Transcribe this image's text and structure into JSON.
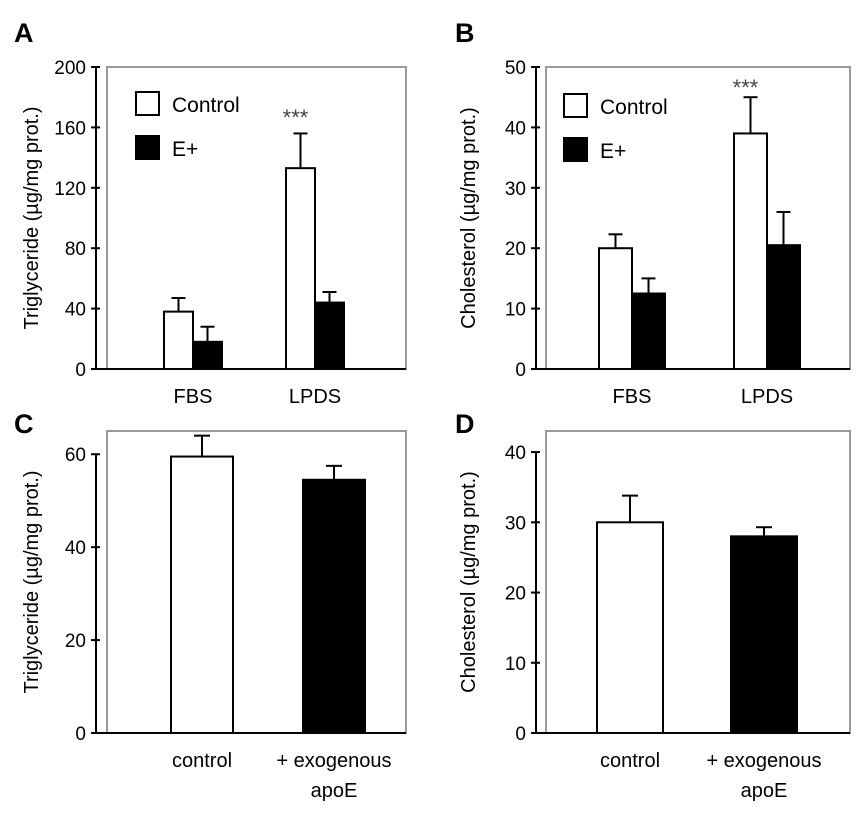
{
  "chart_data": [
    {
      "panel": "A",
      "type": "bar",
      "categories": [
        "FBS",
        "LPDS"
      ],
      "series": [
        {
          "name": "Control",
          "values": [
            38,
            133
          ],
          "errors": [
            9,
            23
          ],
          "fill": "#ffffff"
        },
        {
          "name": "E+",
          "values": [
            18,
            44
          ],
          "errors": [
            10,
            7
          ],
          "fill": "#000000"
        }
      ],
      "ylabel": "Triglyceride (µg/mg prot.)",
      "ylim": [
        0,
        200
      ],
      "yticks": [
        0,
        40,
        80,
        120,
        160,
        200
      ],
      "annotations": [
        {
          "text": "***",
          "category": 1
        }
      ],
      "legend": "top-left"
    },
    {
      "panel": "B",
      "type": "bar",
      "categories": [
        "FBS",
        "LPDS"
      ],
      "series": [
        {
          "name": "Control",
          "values": [
            20,
            39
          ],
          "errors": [
            2.3,
            6
          ],
          "fill": "#ffffff"
        },
        {
          "name": "E+",
          "values": [
            12.5,
            20.5
          ],
          "errors": [
            2.5,
            5.5
          ],
          "fill": "#000000"
        }
      ],
      "ylabel": "Cholesterol  (µg/mg prot.)",
      "ylim": [
        0,
        50
      ],
      "yticks": [
        0,
        10,
        20,
        30,
        40,
        50
      ],
      "annotations": [
        {
          "text": "***",
          "category": 1
        }
      ],
      "legend": "top-left"
    },
    {
      "panel": "C",
      "type": "bar",
      "categories": [
        "control",
        "+ exogenous apoE"
      ],
      "series": [
        {
          "values": [
            59.5,
            54.5
          ],
          "errors": [
            4.5,
            3
          ],
          "fills": [
            "#ffffff",
            "#000000"
          ]
        }
      ],
      "ylabel": "Triglyceride (µg/mg prot.)",
      "ylim": [
        0,
        65
      ],
      "yticks": [
        0,
        20,
        40,
        60
      ]
    },
    {
      "panel": "D",
      "type": "bar",
      "categories": [
        "control",
        "+ exogenous apoE"
      ],
      "series": [
        {
          "values": [
            30,
            28
          ],
          "errors": [
            3.8,
            1.3
          ],
          "fills": [
            "#ffffff",
            "#000000"
          ]
        }
      ],
      "ylabel": "Cholesterol (µg/mg prot.)",
      "ylim": [
        0,
        43
      ],
      "yticks": [
        0,
        10,
        20,
        30,
        40
      ]
    }
  ]
}
